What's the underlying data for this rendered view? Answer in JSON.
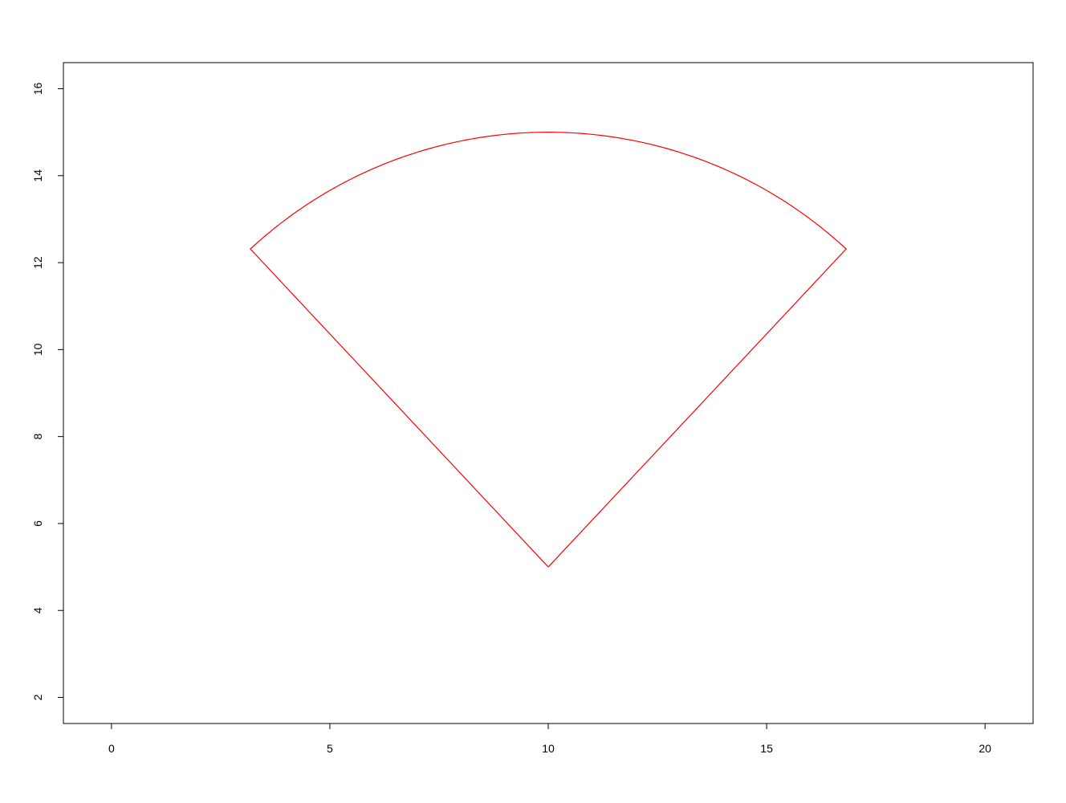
{
  "chart_data": {
    "type": "line",
    "title": "",
    "xlabel": "",
    "ylabel": "",
    "xlim": [
      -1.1,
      21.1
    ],
    "ylim": [
      1.4,
      16.6
    ],
    "x_ticks": [
      0,
      5,
      10,
      15,
      20
    ],
    "y_ticks": [
      2,
      4,
      6,
      8,
      10,
      12,
      14,
      16
    ],
    "x_tick_labels": [
      "0",
      "5",
      "10",
      "15",
      "20"
    ],
    "y_tick_labels": [
      "2",
      "4",
      "6",
      "8",
      "10",
      "12",
      "14",
      "16"
    ],
    "grid": false,
    "legend": "none",
    "series": [
      {
        "shape": "circular-sector",
        "color": "#ff0000",
        "center": [
          10,
          5
        ],
        "radius": 10,
        "start_angle_deg": 47,
        "end_angle_deg": 133,
        "vertices": [
          [
            10,
            5
          ],
          [
            17.31,
            11.82
          ],
          [
            10,
            15
          ],
          [
            2.69,
            11.82
          ],
          [
            10,
            5
          ]
        ]
      }
    ]
  }
}
